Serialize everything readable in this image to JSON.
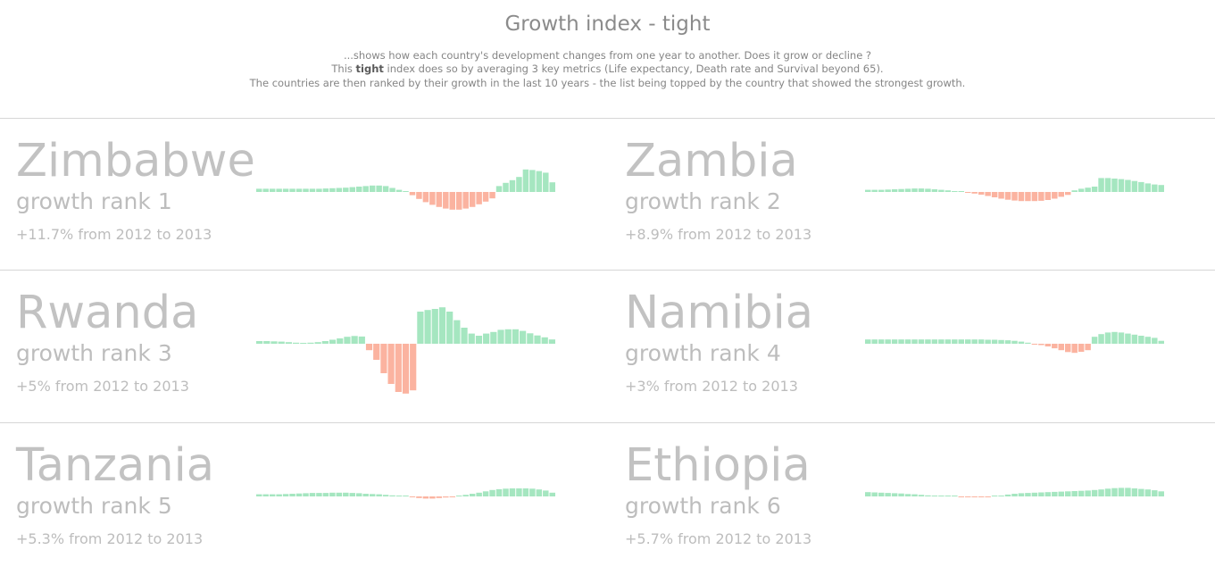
{
  "header": {
    "title": "Growth index - tight",
    "line1": "...shows how each country's development changes from one year to another. Does it grow or decline ?",
    "line2_prefix": "This ",
    "line2_bold": "tight",
    "line2_suffix": " index does so by averaging 3 key metrics (Life expectancy, Death rate and Survival beyond 65).",
    "line3": "The countries are then ranked by their growth in the last 10 years - the list being topped by the country that showed the strongest growth."
  },
  "colors": {
    "positive": "#a5e6c0",
    "negative": "#fbb3a0",
    "text": "#c2c2c2"
  },
  "rank_label": "growth rank",
  "cards": [
    {
      "country": "Zimbabwe",
      "rank": "1",
      "change_text": "+11.7% from 2012 to 2013"
    },
    {
      "country": "Zambia",
      "rank": "2",
      "change_text": "+8.9% from 2012 to 2013"
    },
    {
      "country": "Rwanda",
      "rank": "3",
      "change_text": "+5% from 2012 to 2013"
    },
    {
      "country": "Namibia",
      "rank": "4",
      "change_text": "+3% from 2012 to 2013"
    },
    {
      "country": "Tanzania",
      "rank": "5",
      "change_text": "+5.3% from 2012 to 2013"
    },
    {
      "country": "Ethiopia",
      "rank": "6",
      "change_text": "+5.7% from 2012 to 2013"
    }
  ],
  "chart_data": [
    {
      "type": "bar",
      "title": "Zimbabwe",
      "values": [
        1.2,
        1.2,
        1.2,
        1.2,
        1.2,
        1.2,
        1.2,
        1.2,
        1.2,
        1.2,
        1.3,
        1.4,
        1.5,
        1.6,
        1.8,
        2.0,
        2.2,
        2.4,
        2.4,
        2.2,
        1.5,
        0.8,
        0.2,
        -1.2,
        -2.6,
        -3.8,
        -4.8,
        -5.6,
        -6.2,
        -6.6,
        -6.6,
        -6.2,
        -5.6,
        -4.6,
        -3.6,
        -2.4,
        2.2,
        3.4,
        4.4,
        5.6,
        8.4,
        8.2,
        7.8,
        7.2,
        3.6
      ]
    },
    {
      "type": "bar",
      "title": "Zambia",
      "values": [
        0.8,
        0.8,
        0.8,
        0.9,
        1.0,
        1.1,
        1.2,
        1.3,
        1.3,
        1.2,
        1.0,
        0.8,
        0.6,
        0.3,
        0.0,
        -0.3,
        -0.6,
        -1.0,
        -1.5,
        -2.0,
        -2.5,
        -2.9,
        -3.2,
        -3.4,
        -3.4,
        -3.4,
        -3.3,
        -3.0,
        -2.5,
        -1.8,
        -1.1,
        0.6,
        1.2,
        1.6,
        2.0,
        5.2,
        5.2,
        5.0,
        4.8,
        4.5,
        4.1,
        3.7,
        3.2,
        2.8,
        2.6
      ]
    },
    {
      "type": "bar",
      "title": "Rwanda",
      "values": [
        1.0,
        1.0,
        0.9,
        0.8,
        0.6,
        0.4,
        0.3,
        0.4,
        0.6,
        1.0,
        1.5,
        2.0,
        2.6,
        2.9,
        2.7,
        -2.4,
        -6.0,
        -11.0,
        -15.0,
        -18.0,
        -18.6,
        -17.4,
        12.0,
        12.6,
        13.0,
        13.6,
        12.0,
        8.8,
        6.0,
        3.8,
        3.0,
        3.8,
        4.4,
        5.2,
        5.4,
        5.4,
        4.8,
        3.9,
        3.1,
        2.4,
        1.6
      ]
    },
    {
      "type": "bar",
      "title": "Namibia",
      "values": [
        1.6,
        1.6,
        1.6,
        1.6,
        1.6,
        1.6,
        1.6,
        1.6,
        1.6,
        1.6,
        1.6,
        1.6,
        1.6,
        1.6,
        1.6,
        1.6,
        1.6,
        1.6,
        1.5,
        1.5,
        1.4,
        1.3,
        1.1,
        0.8,
        0.4,
        -0.1,
        -0.5,
        -1.0,
        -1.7,
        -2.4,
        -3.1,
        -3.4,
        -3.0,
        -2.4,
        2.6,
        3.6,
        4.2,
        4.4,
        4.2,
        3.8,
        3.4,
        3.0,
        2.6,
        2.2,
        1.1
      ]
    },
    {
      "type": "bar",
      "title": "Tanzania",
      "values": [
        0.8,
        0.8,
        0.8,
        0.8,
        0.9,
        1.0,
        1.1,
        1.2,
        1.3,
        1.3,
        1.3,
        1.4,
        1.4,
        1.4,
        1.3,
        1.2,
        1.0,
        0.9,
        0.8,
        0.6,
        0.4,
        0.3,
        0.2,
        -0.3,
        -0.6,
        -0.8,
        -0.8,
        -0.6,
        -0.4,
        -0.1,
        0.3,
        0.6,
        1.0,
        1.4,
        1.9,
        2.4,
        2.7,
        2.9,
        3.0,
        3.0,
        3.0,
        2.9,
        2.6,
        2.2,
        1.4
      ]
    },
    {
      "type": "bar",
      "title": "Ethiopia",
      "values": [
        1.6,
        1.5,
        1.4,
        1.3,
        1.2,
        1.1,
        0.9,
        0.8,
        0.6,
        0.4,
        0.3,
        0.2,
        0.1,
        0.0,
        -0.2,
        -0.3,
        -0.3,
        -0.3,
        -0.2,
        0.0,
        0.3,
        0.7,
        1.0,
        1.2,
        1.3,
        1.4,
        1.5,
        1.6,
        1.7,
        1.8,
        1.9,
        2.0,
        2.1,
        2.2,
        2.4,
        2.6,
        2.9,
        3.1,
        3.2,
        3.2,
        3.0,
        2.8,
        2.6,
        2.3,
        1.9
      ]
    }
  ]
}
